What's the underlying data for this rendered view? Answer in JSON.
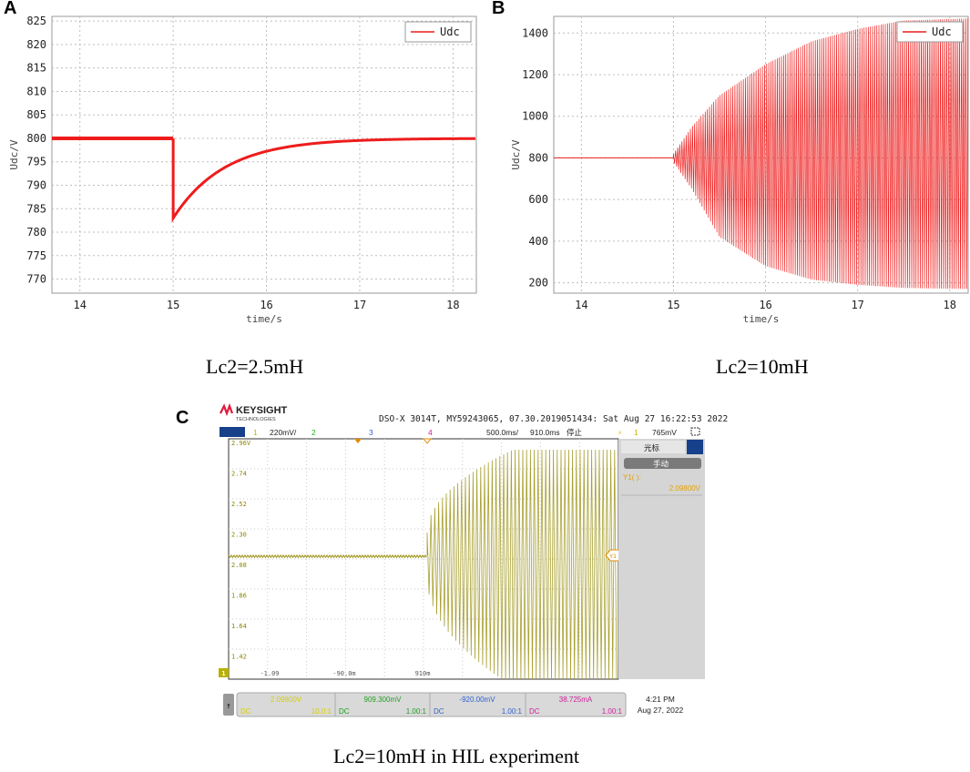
{
  "panels": {
    "a": {
      "letter": "A",
      "caption": "Lc2=2.5mH"
    },
    "b": {
      "letter": "B",
      "caption": "Lc2=10mH"
    },
    "c": {
      "letter": "C",
      "caption": "Lc2=10mH in HIL experiment"
    }
  },
  "colors": {
    "trace": "#ee1c1c",
    "grid": "#bdbdbd",
    "scope_trace": "#a8a030",
    "scope_bg": "#ffffff"
  },
  "chart_data": [
    {
      "type": "line",
      "id": "A",
      "xlabel": "time/s",
      "ylabel": "Udc/V",
      "xlim": [
        13.7,
        18.25
      ],
      "ylim": [
        767,
        826
      ],
      "xticks": [
        14,
        15,
        16,
        17,
        18
      ],
      "yticks": [
        770,
        775,
        780,
        785,
        790,
        795,
        800,
        805,
        810,
        815,
        820,
        825
      ],
      "grid": true,
      "legend": "top-right",
      "series": [
        {
          "name": "Udc",
          "description": "flat at 800 until 15 s, drops to ~783 at 15 s, recovers exponentially to ~800 by 17.3 s",
          "x": [
            13.7,
            15.0,
            15.0,
            15.2,
            15.5,
            16.0,
            16.5,
            17.0,
            17.5,
            18.25
          ],
          "y": [
            800,
            800,
            783,
            786,
            790,
            795,
            798,
            799.5,
            800,
            800
          ]
        }
      ]
    },
    {
      "type": "line",
      "id": "B",
      "xlabel": "time/s",
      "ylabel": "Udc/V",
      "xlim": [
        13.7,
        18.2
      ],
      "ylim": [
        150,
        1480
      ],
      "xticks": [
        14,
        15,
        16,
        17,
        18
      ],
      "yticks": [
        200,
        400,
        600,
        800,
        1000,
        1200,
        1400
      ],
      "grid": true,
      "legend": "top-right",
      "series": [
        {
          "name": "Udc",
          "description": "flat at 800 until 15 s, then growing oscillation envelope",
          "x": [
            13.7,
            15.0,
            15.2,
            15.5,
            16.0,
            16.5,
            17.0,
            17.5,
            18.2
          ],
          "upper": [
            800,
            820,
            950,
            1100,
            1250,
            1360,
            1420,
            1460,
            1470
          ],
          "lower": [
            800,
            780,
            650,
            420,
            280,
            215,
            190,
            175,
            170
          ]
        }
      ]
    },
    {
      "type": "line",
      "id": "C",
      "title": "KEYSIGHT TECHNOLOGIES oscilloscope",
      "yticks": [
        "2.96V",
        "2.74",
        "2.52",
        "2.30",
        "2.08",
        "1.86",
        "1.64",
        "1.42"
      ],
      "xticks": [
        "-1.09",
        "-90.0m",
        "910m"
      ],
      "series": [
        {
          "name": "channel 1",
          "description": "flat noisy ~2.08 V until ~910 ms, then large growing oscillation clipping at top ~2.9 V"
        }
      ]
    }
  ],
  "scope": {
    "brand": "KEYSIGHT",
    "brand_sub": "TECHNOLOGIES",
    "header": "DSO-X 3014T, MY59243065, 07.30.2019051434: Sat Aug 27 16:22:53 2022",
    "ch1_num": "1",
    "ch1_scale": "220mV/",
    "ch2": "2",
    "ch3": "3",
    "ch4": "4",
    "timebase": "500.0ms/",
    "delay": "910.0ms",
    "run_state": "停止",
    "trig_ch": "1",
    "trig_level": "765mV",
    "cursor_title": "光标",
    "cursor_mode": "手动",
    "cursor_label": "Y1( ):",
    "cursor_value": "2.09800V",
    "ch1_value": "2.09800V",
    "ch1_coupling": "DC",
    "ch1_probe": "10.0:1",
    "ch2_value": "909.300mV",
    "ch2_coupling": "DC",
    "ch2_probe": "1.00:1",
    "ch3_value": "-920.00mV",
    "ch3_coupling": "DC",
    "ch3_probe": "1.00:1",
    "ch4_value": "38.725mA",
    "ch4_coupling": "DC",
    "ch4_probe": "1.00:1",
    "time": "4:21 PM",
    "date": "Aug 27, 2022",
    "marker_y1": "Y1",
    "marker_ch1": "1"
  }
}
